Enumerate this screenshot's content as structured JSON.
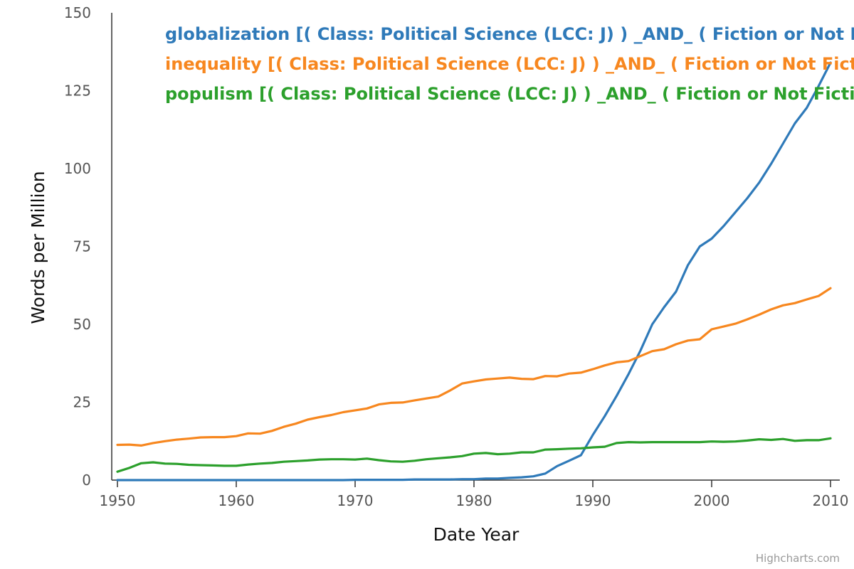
{
  "chart_data": {
    "type": "line",
    "xlabel": "Date Year",
    "ylabel": "Words per Million",
    "xlim": [
      1950,
      2010
    ],
    "ylim": [
      0,
      150
    ],
    "x_ticks": [
      "1950",
      "1960",
      "1970",
      "1980",
      "1990",
      "2000",
      "2010"
    ],
    "y_ticks": [
      "0",
      "25",
      "50",
      "75",
      "100",
      "125",
      "150"
    ],
    "grid": false,
    "legend_position": "top",
    "credits": "Highcharts.com",
    "x": [
      1950,
      1951,
      1952,
      1953,
      1954,
      1955,
      1956,
      1957,
      1958,
      1959,
      1960,
      1961,
      1962,
      1963,
      1964,
      1965,
      1966,
      1967,
      1968,
      1969,
      1970,
      1971,
      1972,
      1973,
      1974,
      1975,
      1976,
      1977,
      1978,
      1979,
      1980,
      1981,
      1982,
      1983,
      1984,
      1985,
      1986,
      1987,
      1988,
      1989,
      1990,
      1991,
      1992,
      1993,
      1994,
      1995,
      1996,
      1997,
      1998,
      1999,
      2000,
      2001,
      2002,
      2003,
      2004,
      2005,
      2006,
      2007,
      2008,
      2009,
      2010
    ],
    "series": [
      {
        "name": "globalization [( Class: Political Science (LCC: J) ) _AND_ ( Fiction or Not F",
        "color": "#2f7ab9",
        "values": [
          0,
          0,
          0,
          0,
          0,
          0,
          0,
          0,
          0,
          0,
          0,
          0,
          0,
          0,
          0,
          0,
          0,
          0,
          0,
          0,
          0.1,
          0.1,
          0.1,
          0.1,
          0.1,
          0.2,
          0.2,
          0.2,
          0.2,
          0.3,
          0.3,
          0.5,
          0.5,
          0.7,
          0.9,
          1.2,
          2.1,
          4.5,
          6.2,
          8.0,
          14.5,
          20.5,
          27.0,
          34.0,
          41.5,
          50.0,
          55.5,
          60.5,
          69.0,
          75.0,
          77.5,
          81.5,
          86.0,
          90.5,
          95.5,
          101.5,
          108.0,
          114.5,
          119.5,
          126.5,
          134.0
        ]
      },
      {
        "name": "inequality [( Class: Political Science (LCC: J) ) _AND_ ( Fiction or Not Ficti",
        "color": "#f7871f",
        "values": [
          11.3,
          11.4,
          11.1,
          11.9,
          12.5,
          13.0,
          13.3,
          13.7,
          13.8,
          13.8,
          14.1,
          15.0,
          14.9,
          15.8,
          17.1,
          18.1,
          19.4,
          20.2,
          20.9,
          21.8,
          22.4,
          23.0,
          24.3,
          24.8,
          24.9,
          25.6,
          26.2,
          26.8,
          28.8,
          31.0,
          31.7,
          32.3,
          32.6,
          32.9,
          32.5,
          32.4,
          33.4,
          33.3,
          34.2,
          34.5,
          35.6,
          36.8,
          37.8,
          38.2,
          39.8,
          41.4,
          42.0,
          43.6,
          44.8,
          45.2,
          48.4,
          49.3,
          50.2,
          51.6,
          53.1,
          54.8,
          56.1,
          56.8,
          58.0,
          59.1,
          61.6
        ]
      },
      {
        "name": "populism [( Class: Political Science (LCC: J) ) _AND_ ( Fiction or Not Fictio",
        "color": "#2ca02c",
        "values": [
          2.7,
          3.9,
          5.4,
          5.7,
          5.3,
          5.2,
          4.9,
          4.8,
          4.7,
          4.6,
          4.6,
          5.0,
          5.3,
          5.5,
          5.9,
          6.1,
          6.3,
          6.6,
          6.7,
          6.7,
          6.6,
          6.9,
          6.4,
          6.0,
          5.9,
          6.2,
          6.7,
          7.0,
          7.3,
          7.7,
          8.5,
          8.7,
          8.3,
          8.5,
          8.9,
          8.9,
          9.8,
          9.9,
          10.1,
          10.2,
          10.5,
          10.7,
          11.9,
          12.2,
          12.1,
          12.2,
          12.2,
          12.2,
          12.2,
          12.2,
          12.4,
          12.3,
          12.4,
          12.7,
          13.1,
          12.9,
          13.2,
          12.6,
          12.8,
          12.8,
          13.4
        ]
      }
    ]
  }
}
